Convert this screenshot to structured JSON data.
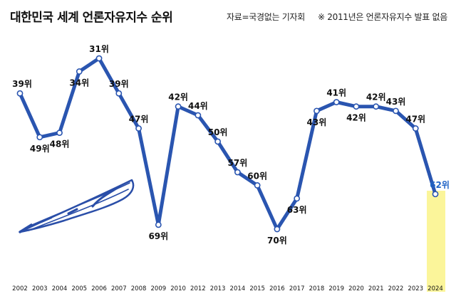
{
  "header": {
    "title": "대한민국 세계 언론자유지수 순위",
    "source": "자료=국경없는 기자회",
    "note": "※ 2011년은 언론자유지수 발표 없음"
  },
  "colors": {
    "line": "#2a55b0",
    "marker_fill": "#ffffff",
    "highlight_band": "#fbf59a",
    "highlight_label": "#1f63c6",
    "doodle": "#2a4ea8"
  },
  "icons": [
    "pen-doodle-icon"
  ],
  "chart_data": {
    "type": "line",
    "title": "대한민국 세계 언론자유지수 순위",
    "categories": [
      "2002",
      "2003",
      "2004",
      "2005",
      "2006",
      "2007",
      "2008",
      "2009",
      "2010",
      "2012",
      "2013",
      "2014",
      "2015",
      "2016",
      "2017",
      "2018",
      "2019",
      "2020",
      "2021",
      "2022",
      "2023",
      "2024"
    ],
    "values": [
      39,
      49,
      48,
      34,
      31,
      39,
      47,
      69,
      42,
      44,
      50,
      57,
      60,
      70,
      63,
      43,
      41,
      42,
      42,
      43,
      47,
      62
    ],
    "labels": [
      "39위",
      "49위",
      "48위",
      "34위",
      "31위",
      "39위",
      "47위",
      "69위",
      "42위",
      "44위",
      "50위",
      "57위",
      "60위",
      "70위",
      "63위",
      "43위",
      "41위",
      "42위",
      "42위",
      "43위",
      "47위",
      "62위"
    ],
    "y_inverted": true,
    "grid": false,
    "highlight_category": "2024",
    "xlabel": "",
    "ylabel": ""
  }
}
